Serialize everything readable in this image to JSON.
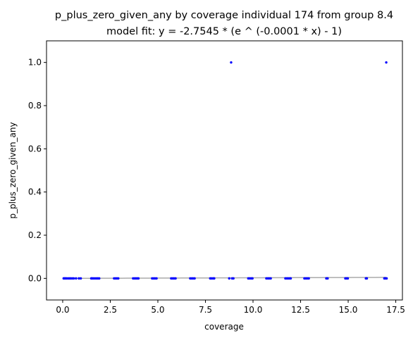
{
  "chart_data": {
    "type": "scatter",
    "title": "p_plus_zero_given_any by coverage individual 174 from group 8.4",
    "subtitle": "model fit: y = -2.7545 * (e ^ (-0.0001 * x) - 1)",
    "xlabel": "coverage",
    "ylabel": "p_plus_zero_given_any",
    "xlim": [
      -0.85,
      17.85
    ],
    "ylim": [
      -0.1,
      1.1
    ],
    "xticks": [
      0.0,
      2.5,
      5.0,
      7.5,
      10.0,
      12.5,
      15.0,
      17.5
    ],
    "xtick_labels": [
      "0.0",
      "2.5",
      "5.0",
      "7.5",
      "10.0",
      "12.5",
      "15.0",
      "17.5"
    ],
    "yticks": [
      0.0,
      0.2,
      0.4,
      0.6,
      0.8,
      1.0
    ],
    "ytick_labels": [
      "0.0",
      "0.2",
      "0.4",
      "0.6",
      "0.8",
      "1.0"
    ],
    "grid": false,
    "colors": {
      "points": "#0000ff",
      "fit_line": "#aaaaaa"
    },
    "fit": {
      "a": -2.7545,
      "b": -0.0001,
      "x_range": [
        0.0,
        17.0
      ]
    },
    "points": [
      [
        0.05,
        0
      ],
      [
        0.1,
        0
      ],
      [
        0.15,
        0
      ],
      [
        0.2,
        0
      ],
      [
        0.28,
        0
      ],
      [
        0.35,
        0
      ],
      [
        0.42,
        0
      ],
      [
        0.5,
        0
      ],
      [
        0.58,
        0
      ],
      [
        0.7,
        0
      ],
      [
        0.85,
        0
      ],
      [
        0.95,
        0
      ],
      [
        1.5,
        0
      ],
      [
        1.55,
        0
      ],
      [
        1.62,
        0
      ],
      [
        1.7,
        0
      ],
      [
        1.78,
        0
      ],
      [
        1.85,
        0
      ],
      [
        1.92,
        0
      ],
      [
        2.7,
        0
      ],
      [
        2.78,
        0
      ],
      [
        2.85,
        0
      ],
      [
        2.92,
        0
      ],
      [
        3.7,
        0
      ],
      [
        3.78,
        0
      ],
      [
        3.85,
        0
      ],
      [
        3.92,
        0
      ],
      [
        3.98,
        0
      ],
      [
        4.7,
        0
      ],
      [
        4.78,
        0
      ],
      [
        4.85,
        0
      ],
      [
        4.93,
        0
      ],
      [
        5.7,
        0
      ],
      [
        5.78,
        0
      ],
      [
        5.85,
        0
      ],
      [
        5.93,
        0
      ],
      [
        6.7,
        0
      ],
      [
        6.78,
        0
      ],
      [
        6.85,
        0
      ],
      [
        6.93,
        0
      ],
      [
        7.75,
        0
      ],
      [
        7.82,
        0
      ],
      [
        7.9,
        0
      ],
      [
        7.96,
        0
      ],
      [
        8.75,
        0
      ],
      [
        8.85,
        1.0
      ],
      [
        8.9,
        0
      ],
      [
        8.97,
        0
      ],
      [
        9.75,
        0
      ],
      [
        9.82,
        0
      ],
      [
        9.9,
        0
      ],
      [
        9.97,
        0
      ],
      [
        10.7,
        0
      ],
      [
        10.78,
        0
      ],
      [
        10.85,
        0
      ],
      [
        10.93,
        0
      ],
      [
        11.7,
        0
      ],
      [
        11.78,
        0
      ],
      [
        11.85,
        0
      ],
      [
        11.93,
        0
      ],
      [
        11.98,
        0
      ],
      [
        12.7,
        0
      ],
      [
        12.78,
        0
      ],
      [
        12.85,
        0
      ],
      [
        12.93,
        0
      ],
      [
        13.85,
        0
      ],
      [
        13.92,
        0
      ],
      [
        14.85,
        0
      ],
      [
        14.92,
        0
      ],
      [
        14.98,
        0
      ],
      [
        15.93,
        0
      ],
      [
        15.98,
        0
      ],
      [
        16.9,
        0
      ],
      [
        16.95,
        0
      ],
      [
        17.0,
        1.0
      ],
      [
        17.02,
        0
      ]
    ]
  }
}
